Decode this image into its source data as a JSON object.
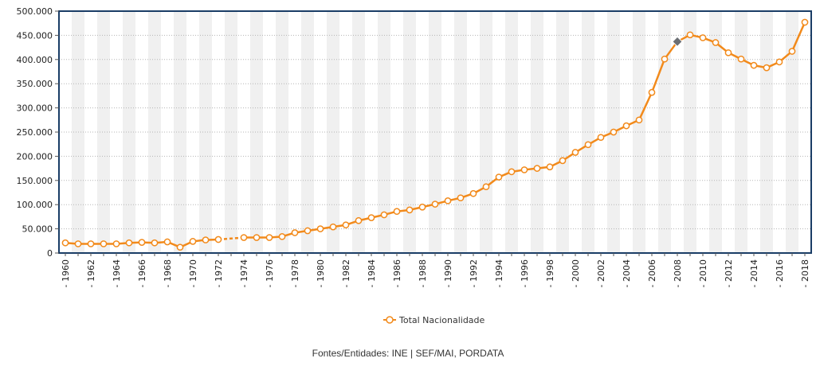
{
  "chart_data": {
    "type": "line",
    "x": [
      1960,
      1961,
      1962,
      1963,
      1964,
      1965,
      1966,
      1967,
      1968,
      1969,
      1970,
      1971,
      1972,
      1973,
      1974,
      1975,
      1976,
      1977,
      1978,
      1979,
      1980,
      1981,
      1982,
      1983,
      1984,
      1985,
      1986,
      1987,
      1988,
      1989,
      1990,
      1991,
      1992,
      1993,
      1994,
      1995,
      1996,
      1997,
      1998,
      1999,
      2000,
      2001,
      2002,
      2003,
      2004,
      2005,
      2006,
      2007,
      2008,
      2009,
      2010,
      2011,
      2012,
      2013,
      2014,
      2015,
      2016,
      2017,
      2018
    ],
    "x_tick_labels": [
      "1960",
      "1962",
      "1964",
      "1966",
      "1968",
      "1970",
      "1972",
      "1974",
      "1976",
      "1978",
      "1980",
      "1982",
      "1984",
      "1986",
      "1988",
      "1990",
      "1992",
      "1994",
      "1996",
      "1998",
      "2000",
      "2002",
      "2004",
      "2006",
      "2008",
      "2010",
      "2012",
      "2014",
      "2016",
      "2018"
    ],
    "y_tick_labels": [
      "0",
      "50.000",
      "100.000",
      "150.000",
      "200.000",
      "250.000",
      "300.000",
      "350.000",
      "400.000",
      "450.000",
      "500.000"
    ],
    "ylim": [
      0,
      500000
    ],
    "series": [
      {
        "name": "Total Nacionalidade",
        "color": "#f28a1b",
        "values": [
          21000,
          19000,
          19000,
          19000,
          19000,
          21000,
          22000,
          21000,
          23000,
          12000,
          24000,
          27000,
          28000,
          null,
          32000,
          32000,
          32000,
          34000,
          42000,
          46000,
          50000,
          54000,
          58000,
          67000,
          73000,
          79000,
          86000,
          89000,
          95000,
          101000,
          108000,
          114000,
          123000,
          137000,
          157000,
          168000,
          172000,
          175000,
          178000,
          191000,
          208000,
          224000,
          239000,
          250000,
          263000,
          275000,
          332000,
          401000,
          437000,
          451000,
          445000,
          435000,
          414000,
          401000,
          388000,
          383000,
          395000,
          417000,
          477000
        ],
        "dashed_gap": {
          "from": 1972,
          "to": 1974
        },
        "highlighted_point": {
          "x": 2008,
          "y": 437000,
          "marker_color": "#6b6e73"
        }
      }
    ],
    "grid": {
      "horizontal": "dotted",
      "vertical_bands": true
    },
    "legend_position": "bottom-center",
    "border_color": "#1a3d66"
  },
  "source_text": "Fontes/Entidades: INE | SEF/MAI, PORDATA"
}
